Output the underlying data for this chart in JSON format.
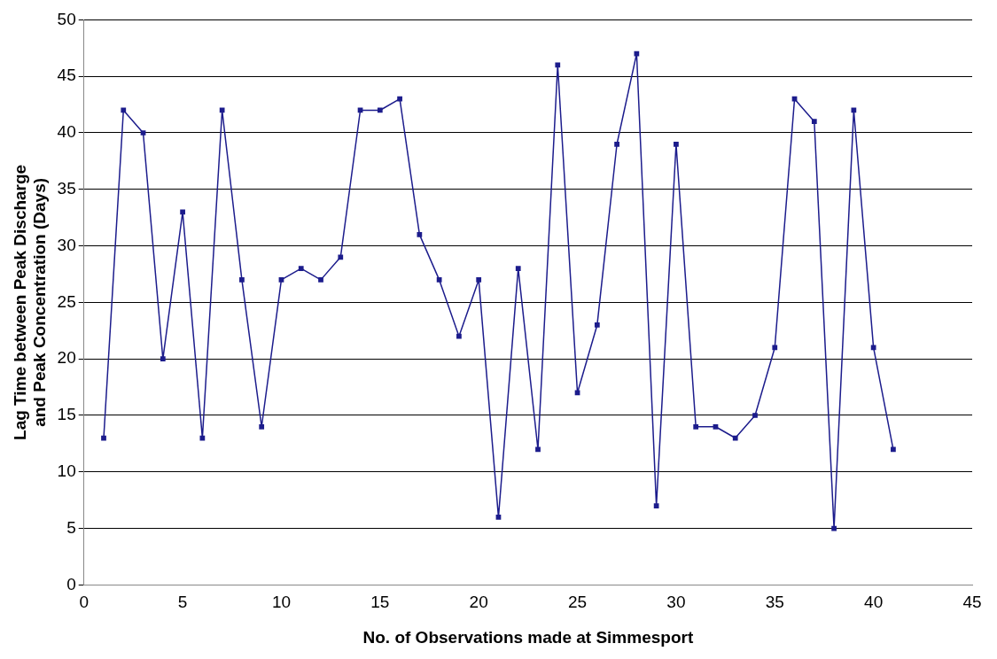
{
  "chart_data": {
    "type": "line",
    "xlabel": "No. of Observations made at Simmesport",
    "ylabel": "Lag Time between Peak Discharge\nand Peak Concentration (Days)",
    "x": [
      1,
      2,
      3,
      4,
      5,
      6,
      7,
      8,
      9,
      10,
      11,
      12,
      13,
      14,
      15,
      16,
      17,
      18,
      19,
      20,
      21,
      22,
      23,
      24,
      25,
      26,
      27,
      28,
      29,
      30,
      31,
      32,
      33,
      34,
      35,
      36,
      37,
      38,
      39,
      40,
      41
    ],
    "series": [
      {
        "color": "#1c1c8c",
        "values": [
          13,
          42,
          40,
          20,
          33,
          13,
          42,
          27,
          14,
          27,
          28,
          27,
          29,
          42,
          42,
          43,
          31,
          27,
          22,
          27,
          6,
          28,
          12,
          46,
          17,
          23,
          39,
          47,
          7,
          39,
          14,
          14,
          13,
          15,
          21,
          43,
          41,
          5,
          42,
          21,
          12
        ]
      }
    ],
    "xlim": [
      0,
      45
    ],
    "xticks": [
      0,
      5,
      10,
      15,
      20,
      25,
      30,
      35,
      40,
      45
    ],
    "ylim": [
      0,
      50
    ],
    "yticks": [
      0,
      5,
      10,
      15,
      20,
      25,
      30,
      35,
      40,
      45,
      50
    ],
    "grid": "y",
    "marker": "square",
    "line_style": "solid",
    "legend": false
  }
}
